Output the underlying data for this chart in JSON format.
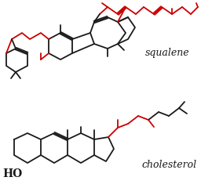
{
  "background_color": "#ffffff",
  "squalene_label": "squalene",
  "cholesterol_label": "cholesterol",
  "ho_label": "HO",
  "label_fontsize": 9,
  "ho_fontsize": 10,
  "linewidth": 1.3,
  "black": "#1a1a1a",
  "red": "#cc0000"
}
